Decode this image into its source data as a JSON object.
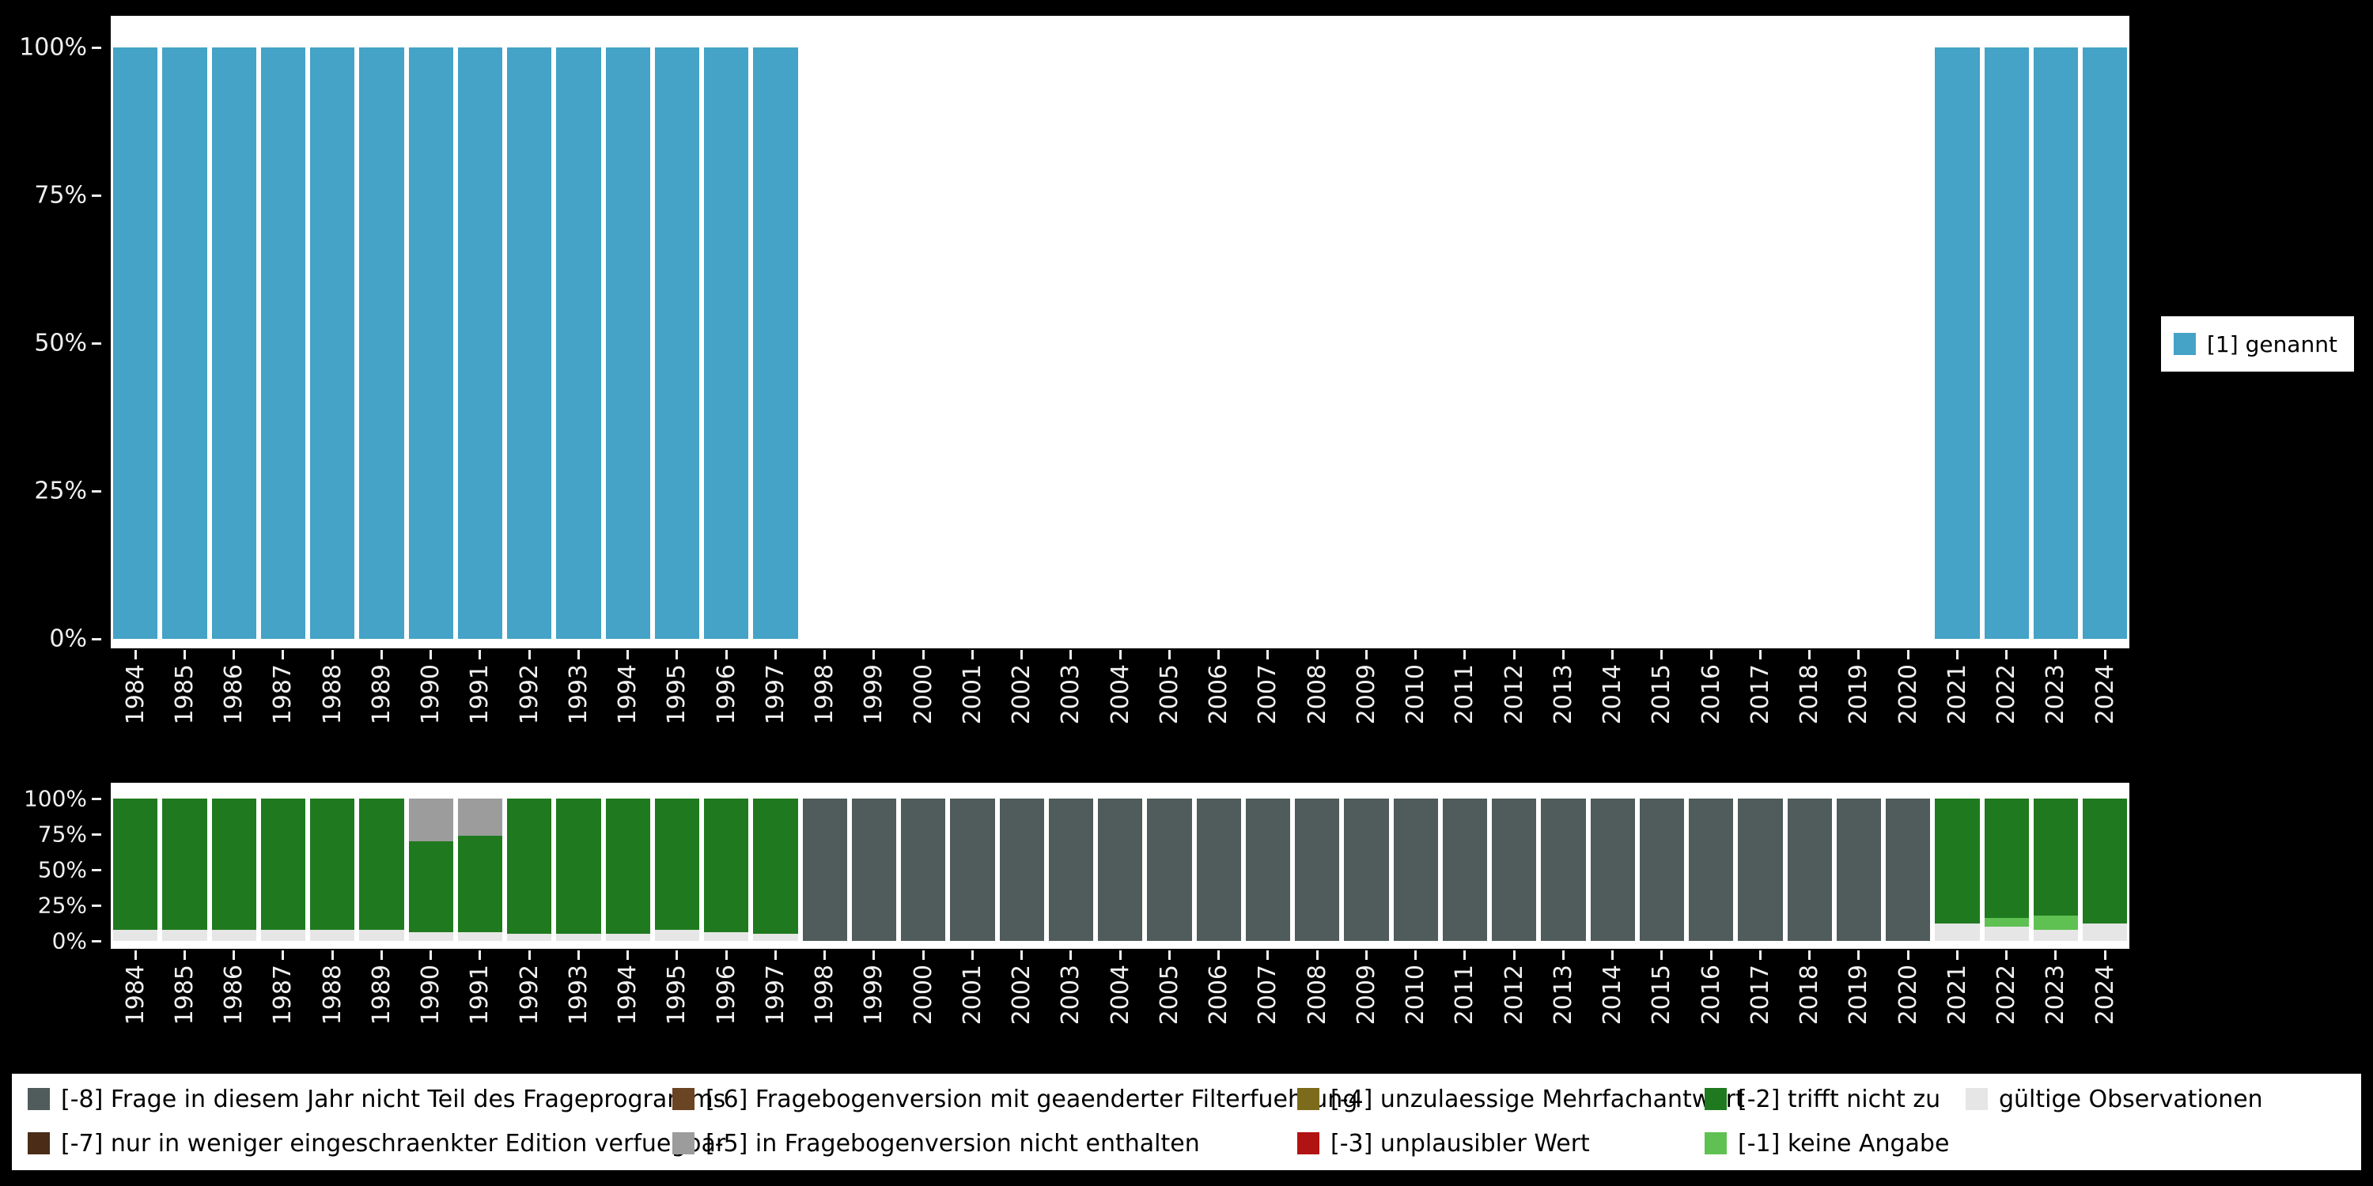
{
  "page": {
    "background": "#000000",
    "panel_background": "#FFFFFF",
    "axis_text_color": "#F0F0F0"
  },
  "years": [
    "1984",
    "1985",
    "1986",
    "1987",
    "1988",
    "1989",
    "1990",
    "1991",
    "1992",
    "1993",
    "1994",
    "1995",
    "1996",
    "1997",
    "1998",
    "1999",
    "2000",
    "2001",
    "2002",
    "2003",
    "2004",
    "2005",
    "2006",
    "2007",
    "2008",
    "2009",
    "2010",
    "2011",
    "2012",
    "2013",
    "2014",
    "2015",
    "2016",
    "2017",
    "2018",
    "2019",
    "2020",
    "2021",
    "2022",
    "2023",
    "2024"
  ],
  "ytick_labels": [
    "0%",
    "25%",
    "50%",
    "75%",
    "100%"
  ],
  "top_legend": {
    "label": "[1] genannt",
    "color": "#44A3C6"
  },
  "chart_data": [
    {
      "type": "bar",
      "stacked": true,
      "unit": "percent",
      "title": "",
      "xlabel": "",
      "ylabel": "",
      "ylim": [
        0,
        100
      ],
      "yticks": [
        0,
        25,
        50,
        75,
        100
      ],
      "categories": [
        "1984",
        "1985",
        "1986",
        "1987",
        "1988",
        "1989",
        "1990",
        "1991",
        "1992",
        "1993",
        "1994",
        "1995",
        "1996",
        "1997",
        "1998",
        "1999",
        "2000",
        "2001",
        "2002",
        "2003",
        "2004",
        "2005",
        "2006",
        "2007",
        "2008",
        "2009",
        "2010",
        "2011",
        "2012",
        "2013",
        "2014",
        "2015",
        "2016",
        "2017",
        "2018",
        "2019",
        "2020",
        "2021",
        "2022",
        "2023",
        "2024"
      ],
      "legend_position": "right",
      "series": [
        {
          "name": "[1] genannt",
          "color": "#44A3C6",
          "values": [
            100,
            100,
            100,
            100,
            100,
            100,
            100,
            100,
            100,
            100,
            100,
            100,
            100,
            100,
            0,
            0,
            0,
            0,
            0,
            0,
            0,
            0,
            0,
            0,
            0,
            0,
            0,
            0,
            0,
            0,
            0,
            0,
            0,
            0,
            0,
            0,
            0,
            100,
            100,
            100,
            100
          ]
        }
      ]
    },
    {
      "type": "bar",
      "stacked": true,
      "unit": "percent",
      "title": "",
      "xlabel": "",
      "ylabel": "",
      "ylim": [
        0,
        100
      ],
      "yticks": [
        0,
        25,
        50,
        75,
        100
      ],
      "categories": [
        "1984",
        "1985",
        "1986",
        "1987",
        "1988",
        "1989",
        "1990",
        "1991",
        "1992",
        "1993",
        "1994",
        "1995",
        "1996",
        "1997",
        "1998",
        "1999",
        "2000",
        "2001",
        "2002",
        "2003",
        "2004",
        "2005",
        "2006",
        "2007",
        "2008",
        "2009",
        "2010",
        "2011",
        "2012",
        "2013",
        "2014",
        "2015",
        "2016",
        "2017",
        "2018",
        "2019",
        "2020",
        "2021",
        "2022",
        "2023",
        "2024"
      ],
      "legend_position": "bottom",
      "series": [
        {
          "name": "gültige Observationen",
          "color": "#E6E6E6",
          "values": [
            8,
            8,
            8,
            8,
            8,
            8,
            6,
            6,
            5,
            5,
            5,
            8,
            6,
            5,
            0,
            0,
            0,
            0,
            0,
            0,
            0,
            0,
            0,
            0,
            0,
            0,
            0,
            0,
            0,
            0,
            0,
            0,
            0,
            0,
            0,
            0,
            0,
            12,
            10,
            8,
            12
          ]
        },
        {
          "name": "[-1] keine Angabe",
          "color": "#5FC152",
          "values": [
            0,
            0,
            0,
            0,
            0,
            0,
            0,
            0,
            0,
            0,
            0,
            0,
            0,
            0,
            0,
            0,
            0,
            0,
            0,
            0,
            0,
            0,
            0,
            0,
            0,
            0,
            0,
            0,
            0,
            0,
            0,
            0,
            0,
            0,
            0,
            0,
            0,
            0,
            6,
            10,
            0
          ]
        },
        {
          "name": "[-2] trifft nicht zu",
          "color": "#1F7A1F",
          "values": [
            92,
            92,
            92,
            92,
            92,
            92,
            64,
            68,
            95,
            95,
            95,
            92,
            94,
            95,
            0,
            0,
            0,
            0,
            0,
            0,
            0,
            0,
            0,
            0,
            0,
            0,
            0,
            0,
            0,
            0,
            0,
            0,
            0,
            0,
            0,
            0,
            0,
            88,
            84,
            82,
            88
          ]
        },
        {
          "name": "[-5] in Fragebogenversion nicht enthalten",
          "color": "#9C9C9C",
          "values": [
            0,
            0,
            0,
            0,
            0,
            0,
            30,
            26,
            0,
            0,
            0,
            0,
            0,
            0,
            0,
            0,
            0,
            0,
            0,
            0,
            0,
            0,
            0,
            0,
            0,
            0,
            0,
            0,
            0,
            0,
            0,
            0,
            0,
            0,
            0,
            0,
            0,
            0,
            0,
            0,
            0
          ]
        },
        {
          "name": "[-8] Frage in diesem Jahr nicht Teil des Frageprogramms",
          "color": "#505B5B",
          "values": [
            0,
            0,
            0,
            0,
            0,
            0,
            0,
            0,
            0,
            0,
            0,
            0,
            0,
            0,
            100,
            100,
            100,
            100,
            100,
            100,
            100,
            100,
            100,
            100,
            100,
            100,
            100,
            100,
            100,
            100,
            100,
            100,
            100,
            100,
            100,
            100,
            100,
            0,
            0,
            0,
            0
          ]
        }
      ]
    }
  ],
  "legend": {
    "columns": [
      [
        {
          "label": "[-8] Frage in diesem Jahr nicht Teil des Frageprogramms",
          "color": "#505B5B"
        },
        {
          "label": "[-7] nur in weniger eingeschraenkter Edition verfuegbar",
          "color": "#4A2C17"
        }
      ],
      [
        {
          "label": "[-6] Fragebogenversion mit geaenderter Filterfuehrung",
          "color": "#6B4423"
        },
        {
          "label": "[-5] in Fragebogenversion nicht enthalten",
          "color": "#9C9C9C"
        }
      ],
      [
        {
          "label": "[-4] unzulaessige Mehrfachantwort",
          "color": "#7D6B1C"
        },
        {
          "label": "[-3] unplausibler Wert",
          "color": "#B11212"
        }
      ],
      [
        {
          "label": "[-2] trifft nicht zu",
          "color": "#1F7A1F"
        },
        {
          "label": "[-1] keine Angabe",
          "color": "#5FC152"
        }
      ],
      [
        {
          "label": "gültige Observationen",
          "color": "#E6E6E6"
        }
      ]
    ]
  }
}
